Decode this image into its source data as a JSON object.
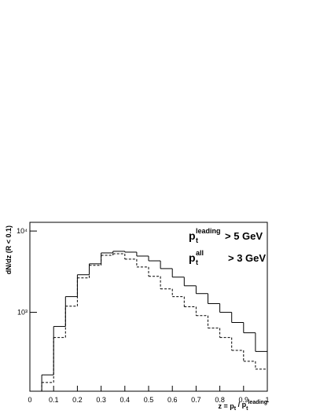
{
  "chart_data": {
    "type": "histogram",
    "ylabel": "dN/dz (R < 0.1)",
    "xlabel": [
      "z = p",
      "t",
      " / p",
      "t",
      "leading"
    ],
    "annotations": [
      {
        "base": "p",
        "sub": "t",
        "sup": "leading",
        "text": "> 5 GeV"
      },
      {
        "base": "p",
        "sub": "t",
        "sup": "all",
        "text": "> 3 GeV"
      }
    ],
    "bins": [
      0.05,
      0.1,
      0.15,
      0.2,
      0.25,
      0.3,
      0.35,
      0.4,
      0.45,
      0.5,
      0.55,
      0.6,
      0.65,
      0.7,
      0.75,
      0.8,
      0.85,
      0.9,
      0.95,
      1.0
    ],
    "series": [
      {
        "color": "#000000",
        "line_style": "solid",
        "values": [
          170,
          670,
          1560,
          2900,
          3950,
          5380,
          5630,
          5500,
          4920,
          4300,
          3450,
          2710,
          2120,
          1700,
          1280,
          1000,
          750,
          560,
          330
        ]
      },
      {
        "color": "#000000",
        "line_style": "dashed",
        "values": [
          137,
          490,
          1190,
          2650,
          3780,
          5030,
          5260,
          4510,
          3610,
          2770,
          1940,
          1560,
          1170,
          910,
          640,
          490,
          340,
          250,
          200
        ]
      }
    ],
    "xlim": [
      0,
      1
    ],
    "xticks": [
      0,
      0.1,
      0.2,
      0.3,
      0.4,
      0.5,
      0.6,
      0.7,
      0.8,
      0.9,
      1
    ],
    "ylim": [
      107,
      12800
    ],
    "yscale": "log",
    "yticks": [
      {
        "value": 1000,
        "label": "10³"
      },
      {
        "value": 10000,
        "label": "10⁴"
      }
    ]
  }
}
